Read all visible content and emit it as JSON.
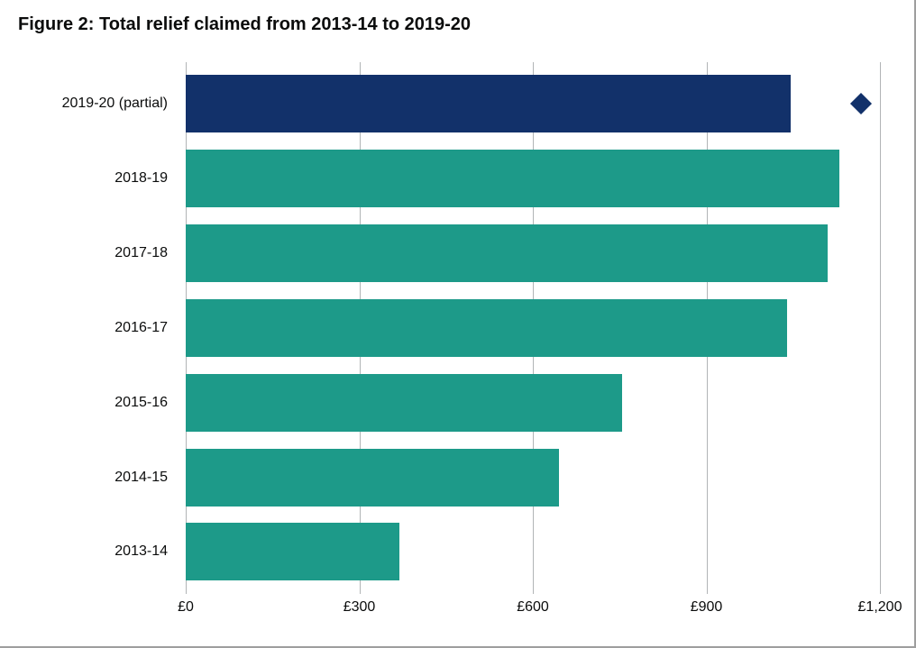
{
  "chart": {
    "type": "bar-horizontal",
    "title": "Figure 2: Total relief claimed from 2013-14 to 2019-20",
    "title_fontsize": 20,
    "title_weight": 700,
    "title_color": "#0b0c0c",
    "background_color": "#ffffff",
    "grid_color": "#b1b4b6",
    "label_fontsize": 16,
    "label_color": "#0b0c0c",
    "xlim": [
      0,
      1200
    ],
    "xtick_step": 300,
    "xticks": [
      {
        "value": 0,
        "label": "£0"
      },
      {
        "value": 300,
        "label": "£300"
      },
      {
        "value": 600,
        "label": "£600"
      },
      {
        "value": 900,
        "label": "£900"
      },
      {
        "value": 1200,
        "label": "£1,200"
      }
    ],
    "bar_gap_ratio": 0.24,
    "categories": [
      {
        "label": "2019-20 (partial)",
        "value": 1045,
        "color": "#12316a"
      },
      {
        "label": "2018-19",
        "value": 1130,
        "color": "#1d9a89"
      },
      {
        "label": "2017-18",
        "value": 1110,
        "color": "#1d9a89"
      },
      {
        "label": "2016-17",
        "value": 1040,
        "color": "#1d9a89"
      },
      {
        "label": "2015-16",
        "value": 755,
        "color": "#1d9a89"
      },
      {
        "label": "2014-15",
        "value": 645,
        "color": "#1d9a89"
      },
      {
        "label": "2013-14",
        "value": 370,
        "color": "#1d9a89"
      }
    ],
    "marker": {
      "shape": "diamond",
      "value_x": 1168,
      "row_index": 0,
      "color": "#12316a",
      "size": 17
    },
    "border_color": "#9e9e9e"
  }
}
